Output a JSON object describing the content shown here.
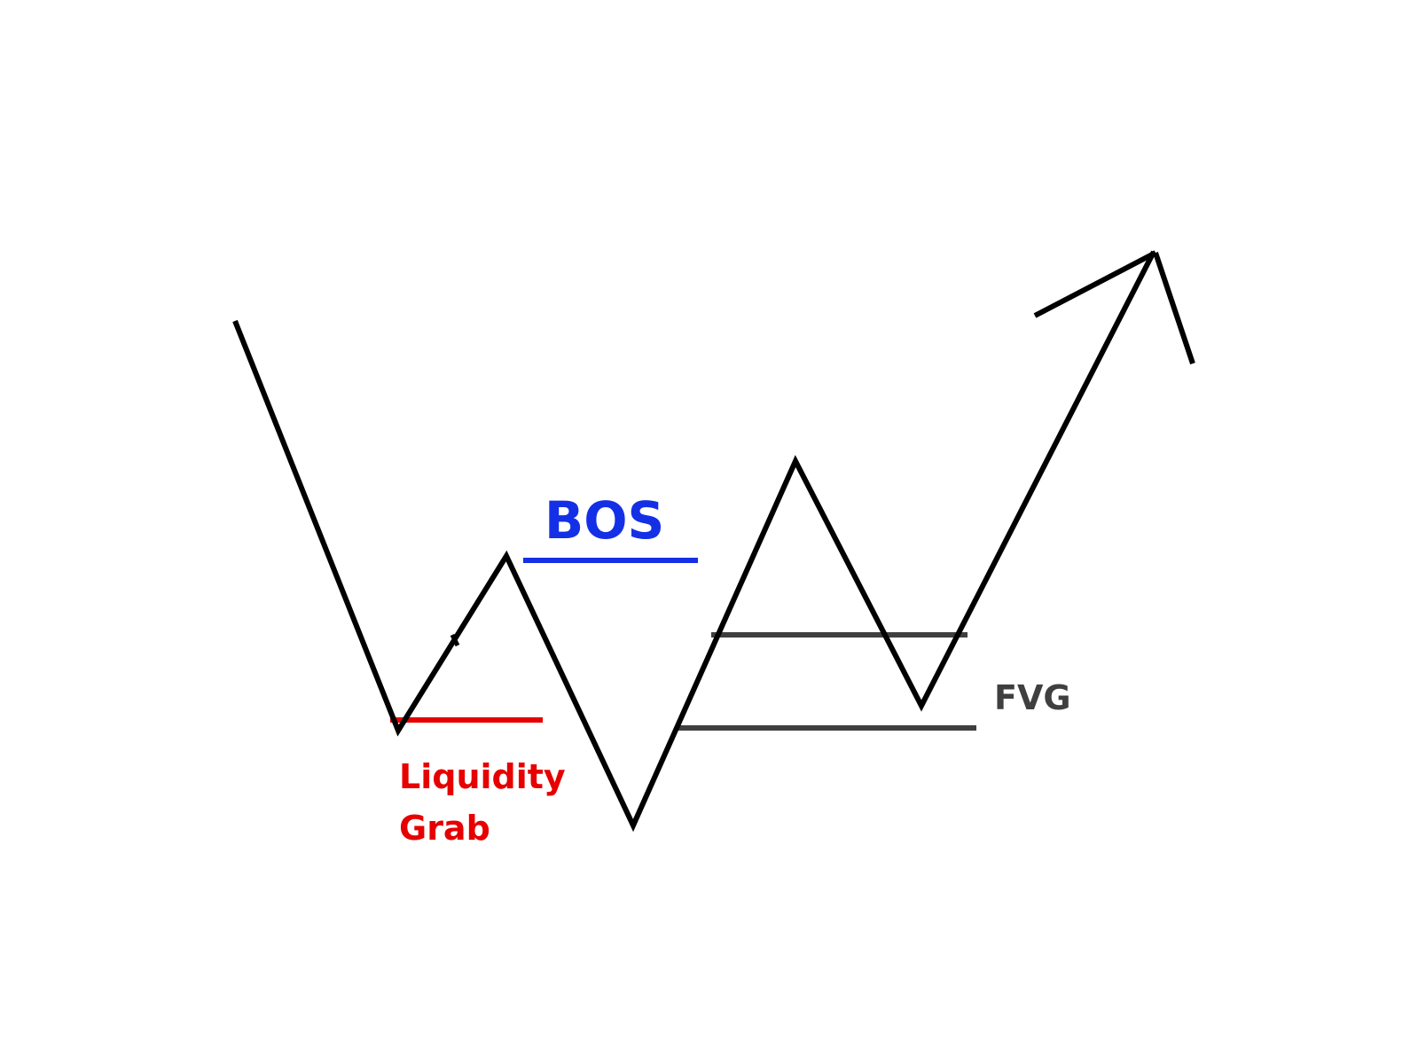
{
  "labels": {
    "bos": "BOS",
    "fvg": "FVG",
    "liquidity_line1": "Liquidity",
    "liquidity_line2": "Grab"
  },
  "colors": {
    "price_line": "#000000",
    "bos": "#1430e6",
    "liquidity": "#e60000",
    "fvg": "#3f3f3f",
    "background": "#ffffff"
  },
  "icons": {
    "trend_arrow": "arrow-up-right-icon"
  }
}
